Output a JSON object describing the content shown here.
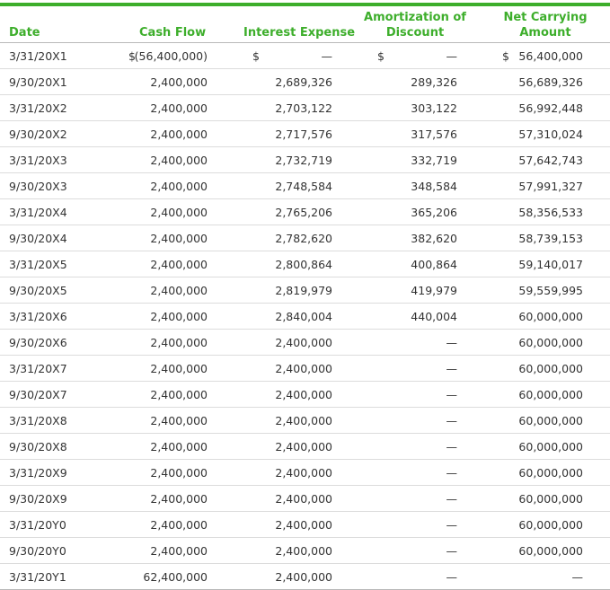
{
  "table": {
    "headers": {
      "date": "Date",
      "cash_flow": "Cash Flow",
      "interest_expense": "Interest Expense",
      "amortization_line1": "Amortization of",
      "amortization_line2": "Discount",
      "net_carrying_line1": "Net Carrying",
      "net_carrying_line2": "Amount"
    },
    "currency_symbol": "$",
    "rows": [
      {
        "date": "3/31/20X1",
        "cash_flow": "(56,400,000)",
        "interest_expense": "—",
        "amortization": "—",
        "net_carrying": "56,400,000"
      },
      {
        "date": "9/30/20X1",
        "cash_flow": "2,400,000",
        "interest_expense": "2,689,326",
        "amortization": "289,326",
        "net_carrying": "56,689,326"
      },
      {
        "date": "3/31/20X2",
        "cash_flow": "2,400,000",
        "interest_expense": "2,703,122",
        "amortization": "303,122",
        "net_carrying": "56,992,448"
      },
      {
        "date": "9/30/20X2",
        "cash_flow": "2,400,000",
        "interest_expense": "2,717,576",
        "amortization": "317,576",
        "net_carrying": "57,310,024"
      },
      {
        "date": "3/31/20X3",
        "cash_flow": "2,400,000",
        "interest_expense": "2,732,719",
        "amortization": "332,719",
        "net_carrying": "57,642,743"
      },
      {
        "date": "9/30/20X3",
        "cash_flow": "2,400,000",
        "interest_expense": "2,748,584",
        "amortization": "348,584",
        "net_carrying": "57,991,327"
      },
      {
        "date": "3/31/20X4",
        "cash_flow": "2,400,000",
        "interest_expense": "2,765,206",
        "amortization": "365,206",
        "net_carrying": "58,356,533"
      },
      {
        "date": "9/30/20X4",
        "cash_flow": "2,400,000",
        "interest_expense": "2,782,620",
        "amortization": "382,620",
        "net_carrying": "58,739,153"
      },
      {
        "date": "3/31/20X5",
        "cash_flow": "2,400,000",
        "interest_expense": "2,800,864",
        "amortization": "400,864",
        "net_carrying": "59,140,017"
      },
      {
        "date": "9/30/20X5",
        "cash_flow": "2,400,000",
        "interest_expense": "2,819,979",
        "amortization": "419,979",
        "net_carrying": "59,559,995"
      },
      {
        "date": "3/31/20X6",
        "cash_flow": "2,400,000",
        "interest_expense": "2,840,004",
        "amortization": "440,004",
        "net_carrying": "60,000,000"
      },
      {
        "date": "9/30/20X6",
        "cash_flow": "2,400,000",
        "interest_expense": "2,400,000",
        "amortization": "—",
        "net_carrying": "60,000,000"
      },
      {
        "date": "3/31/20X7",
        "cash_flow": "2,400,000",
        "interest_expense": "2,400,000",
        "amortization": "—",
        "net_carrying": "60,000,000"
      },
      {
        "date": "9/30/20X7",
        "cash_flow": "2,400,000",
        "interest_expense": "2,400,000",
        "amortization": "—",
        "net_carrying": "60,000,000"
      },
      {
        "date": "3/31/20X8",
        "cash_flow": "2,400,000",
        "interest_expense": "2,400,000",
        "amortization": "—",
        "net_carrying": "60,000,000"
      },
      {
        "date": "9/30/20X8",
        "cash_flow": "2,400,000",
        "interest_expense": "2,400,000",
        "amortization": "—",
        "net_carrying": "60,000,000"
      },
      {
        "date": "3/31/20X9",
        "cash_flow": "2,400,000",
        "interest_expense": "2,400,000",
        "amortization": "—",
        "net_carrying": "60,000,000"
      },
      {
        "date": "9/30/20X9",
        "cash_flow": "2,400,000",
        "interest_expense": "2,400,000",
        "amortization": "—",
        "net_carrying": "60,000,000"
      },
      {
        "date": "3/31/20Y0",
        "cash_flow": "2,400,000",
        "interest_expense": "2,400,000",
        "amortization": "—",
        "net_carrying": "60,000,000"
      },
      {
        "date": "9/30/20Y0",
        "cash_flow": "2,400,000",
        "interest_expense": "2,400,000",
        "amortization": "—",
        "net_carrying": "60,000,000"
      },
      {
        "date": "3/31/20Y1",
        "cash_flow": "62,400,000",
        "interest_expense": "2,400,000",
        "amortization": "—",
        "net_carrying": "—"
      }
    ]
  },
  "colors": {
    "accent": "#3dae2b",
    "text": "#333333",
    "row_border": "#dcdcdc"
  }
}
